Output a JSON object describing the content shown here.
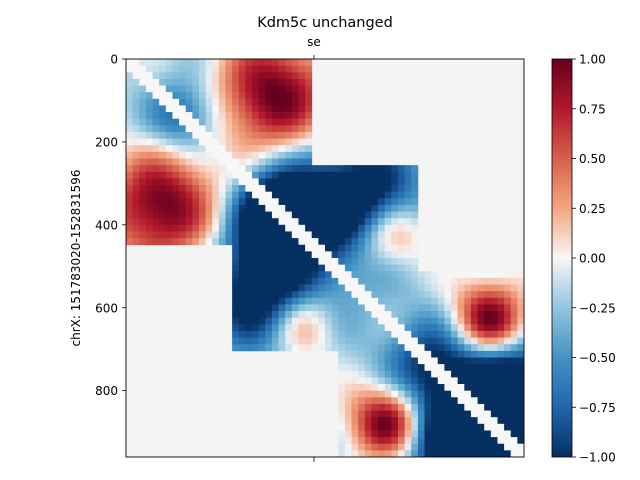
{
  "chart_data": {
    "type": "heatmap",
    "title": "Kdm5c unchanged",
    "ylabel": "chrX: 151783020-152831596",
    "xlabel": "",
    "top_marker_label": "se",
    "x_range": [
      0,
      960
    ],
    "y_range": [
      0,
      960
    ],
    "y_ticks": [
      "0",
      "200",
      "400",
      "600",
      "800"
    ],
    "colorbar": {
      "colormap": "RdBu_r",
      "range": [
        -1.0,
        1.0
      ],
      "ticks": [
        "1.00",
        "0.75",
        "0.50",
        "0.25",
        "0.00",
        "−0.25",
        "−0.50",
        "−0.75",
        "−1.00"
      ]
    },
    "blocks": [
      {
        "name": "block-1",
        "start": 0,
        "end": 450
      },
      {
        "name": "block-2",
        "start": 255,
        "end": 700
      },
      {
        "name": "block-3",
        "start": 510,
        "end": 960
      }
    ],
    "hotspots": [
      {
        "x": 350,
        "y": 90,
        "r": 90,
        "v": 0.65
      },
      {
        "x": 80,
        "y": 370,
        "r": 110,
        "v": 0.55
      },
      {
        "x": 130,
        "y": 150,
        "r": 60,
        "v": -0.35
      },
      {
        "x": 380,
        "y": 350,
        "r": 70,
        "v": -0.75
      },
      {
        "x": 560,
        "y": 350,
        "r": 90,
        "v": -0.7
      },
      {
        "x": 350,
        "y": 560,
        "r": 110,
        "v": -0.65
      },
      {
        "x": 600,
        "y": 420,
        "r": 60,
        "v": 0.5
      },
      {
        "x": 420,
        "y": 660,
        "r": 60,
        "v": 0.55
      },
      {
        "x": 880,
        "y": 640,
        "r": 60,
        "v": 0.55
      },
      {
        "x": 640,
        "y": 880,
        "r": 60,
        "v": 0.45
      },
      {
        "x": 930,
        "y": 800,
        "r": 80,
        "v": -0.8
      },
      {
        "x": 830,
        "y": 930,
        "r": 90,
        "v": -0.85
      },
      {
        "x": 760,
        "y": 720,
        "r": 80,
        "v": -0.45
      },
      {
        "x": 600,
        "y": 860,
        "r": 70,
        "v": 0.35
      }
    ]
  }
}
